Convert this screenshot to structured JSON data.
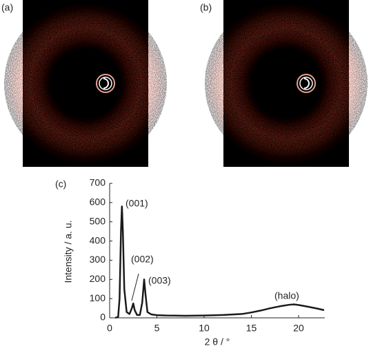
{
  "panel_labels": [
    "(a)",
    "(b)",
    "(c)"
  ],
  "chart_data": {
    "type": "line",
    "x_label": "2 θ / °",
    "y_label": "Intensity  / a. u.",
    "x": [
      0.6,
      0.9,
      1.05,
      1.2,
      1.3,
      1.4,
      1.55,
      1.8,
      2.1,
      2.35,
      2.5,
      2.65,
      2.9,
      3.2,
      3.45,
      3.65,
      3.8,
      4.0,
      4.4,
      5,
      6,
      8,
      10,
      12,
      14,
      15,
      16,
      17,
      18,
      19,
      19.5,
      20,
      21,
      22,
      22.7
    ],
    "series": [
      {
        "color": "#1a1a1a",
        "values": [
          0,
          5,
          100,
          450,
          580,
          450,
          150,
          30,
          20,
          50,
          75,
          40,
          15,
          15,
          80,
          200,
          120,
          30,
          18,
          14,
          12,
          11,
          12,
          15,
          20,
          28,
          38,
          50,
          60,
          68,
          70,
          67,
          58,
          48,
          40
        ]
      }
    ],
    "xlim": [
      0,
      22.7
    ],
    "xticks": [
      0,
      5,
      10,
      15,
      20
    ],
    "ylim": [
      0,
      700
    ],
    "yticks": [
      0,
      100,
      200,
      300,
      400,
      500,
      600,
      700
    ],
    "annotations": [
      "(001)",
      "(002)",
      "(003)",
      "(halo)"
    ]
  }
}
